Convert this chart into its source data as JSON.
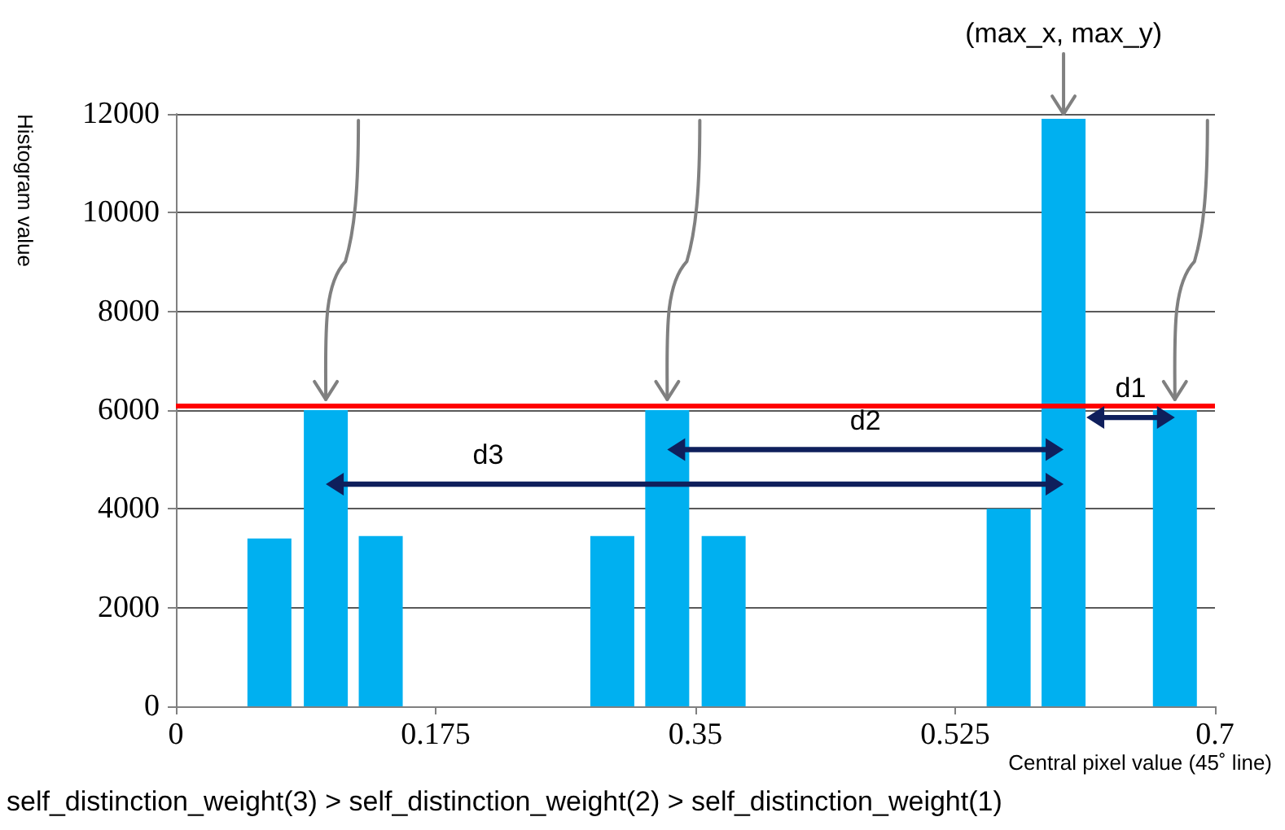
{
  "chart_data": {
    "type": "bar",
    "xlabel": "Central pixel value (45˚ line)",
    "ylabel": "Histogram value",
    "x": [
      0.063,
      0.101,
      0.138,
      0.294,
      0.331,
      0.369,
      0.561,
      0.598,
      0.673
    ],
    "values": [
      3400,
      6000,
      3450,
      3450,
      6000,
      3450,
      4000,
      11900,
      6000
    ],
    "color": "#00b0f0",
    "xlim": [
      0,
      0.7
    ],
    "xticks": [
      0,
      0.175,
      0.35,
      0.525,
      0.7
    ],
    "ylim": [
      0,
      12000
    ],
    "yticks": [
      0,
      2000,
      4000,
      6000,
      8000,
      10000,
      12000
    ],
    "grid": "y",
    "ref_lines": [
      {
        "axis": "y",
        "value": 6100,
        "color": "#ff0000"
      }
    ],
    "annotations": [
      {
        "text": "(max_x, max_y)",
        "x": 0.598,
        "y": 11900
      },
      "d1",
      "d2",
      "d3",
      "self_distinction_weight(3) > self_distinction_weight(2) > self_distinction_weight(1)"
    ]
  }
}
